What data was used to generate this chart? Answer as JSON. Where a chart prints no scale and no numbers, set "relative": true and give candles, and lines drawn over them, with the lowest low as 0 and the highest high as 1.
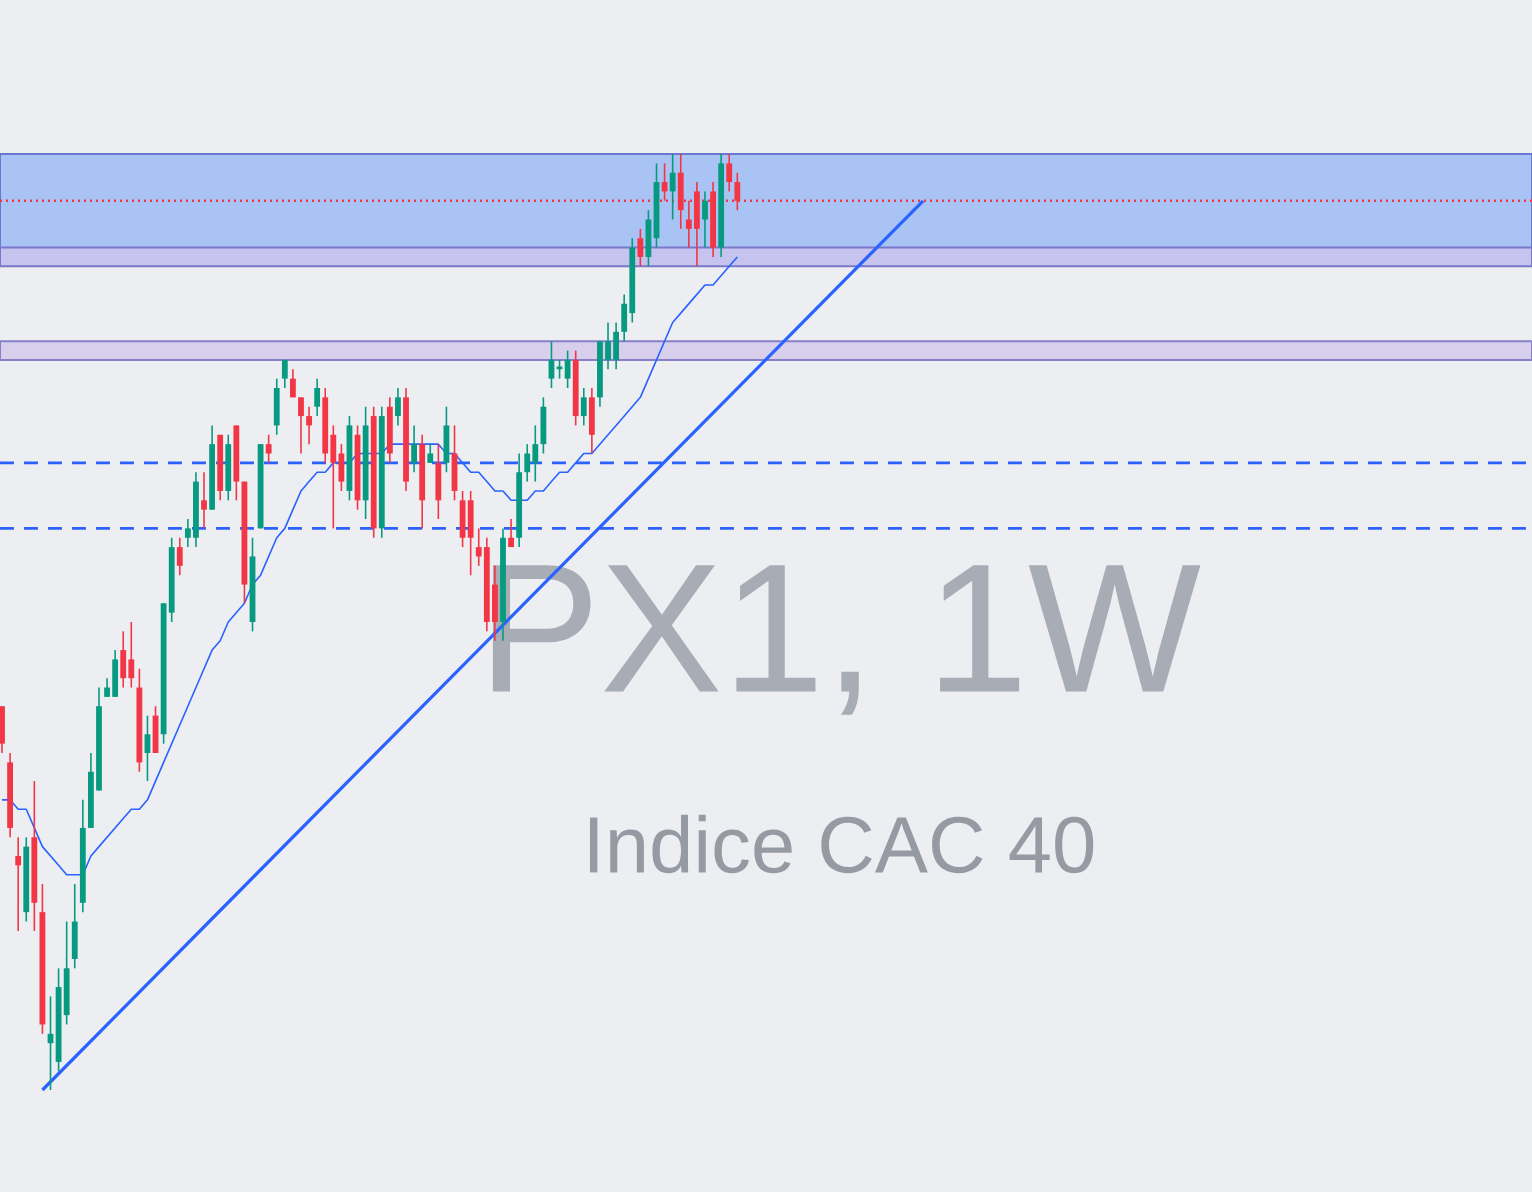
{
  "chart_data": {
    "type": "candlestick",
    "title": "PX1, 1W",
    "subtitle": "Indice CAC 40",
    "relative": true,
    "categories": [
      null,
      null,
      null,
      null,
      null,
      null,
      null,
      null,
      null,
      null,
      null,
      null,
      null,
      null,
      null,
      null,
      null,
      null,
      null,
      null,
      null,
      null,
      null,
      null,
      null,
      null,
      null,
      null,
      null,
      null,
      null,
      null,
      null,
      null,
      null,
      null,
      null,
      null,
      null,
      null,
      null,
      null,
      null,
      null,
      null,
      null,
      null,
      null,
      null,
      null,
      null,
      null,
      null,
      null,
      null,
      null,
      null,
      null,
      null,
      null,
      null,
      null,
      null,
      null,
      null,
      null,
      null,
      null,
      null,
      null,
      null,
      null,
      null,
      null,
      null,
      null,
      null,
      null,
      null,
      null,
      null,
      null,
      null,
      null,
      null,
      null,
      null,
      null,
      null,
      null,
      null,
      null,
      null,
      null,
      null,
      null,
      null,
      null,
      null,
      null,
      null,
      null,
      null,
      null,
      null,
      null,
      null,
      null,
      null,
      null,
      null,
      null,
      null,
      null,
      null
    ],
    "ohlc": [
      [
        0.41,
        0.41,
        0.36,
        0.37
      ],
      [
        0.35,
        0.36,
        0.27,
        0.28
      ],
      [
        0.25,
        0.27,
        0.17,
        0.24
      ],
      [
        0.19,
        0.27,
        0.18,
        0.26
      ],
      [
        0.27,
        0.33,
        0.17,
        0.2
      ],
      [
        0.19,
        0.22,
        0.06,
        0.07
      ],
      [
        0.05,
        0.1,
        0,
        0.06
      ],
      [
        0.03,
        0.13,
        0.02,
        0.11
      ],
      [
        0.08,
        0.18,
        0.07,
        0.13
      ],
      [
        0.14,
        0.22,
        0.13,
        0.18
      ],
      [
        0.2,
        0.31,
        0.19,
        0.28
      ],
      [
        0.28,
        0.36,
        0.28,
        0.34
      ],
      [
        0.32,
        0.43,
        0.32,
        0.41
      ],
      [
        0.42,
        0.44,
        0.42,
        0.43
      ],
      [
        0.42,
        0.47,
        0.42,
        0.46
      ],
      [
        0.47,
        0.49,
        0.43,
        0.44
      ],
      [
        0.46,
        0.5,
        0.43,
        0.44
      ],
      [
        0.43,
        0.45,
        0.34,
        0.35
      ],
      [
        0.36,
        0.4,
        0.33,
        0.38
      ],
      [
        0.4,
        0.41,
        0.36,
        0.36
      ],
      [
        0.38,
        0.52,
        0.37,
        0.52
      ],
      [
        0.51,
        0.59,
        0.5,
        0.58
      ],
      [
        0.58,
        0.59,
        0.55,
        0.56
      ],
      [
        0.59,
        0.61,
        0.58,
        0.6
      ],
      [
        0.59,
        0.66,
        0.58,
        0.65
      ],
      [
        0.63,
        0.66,
        0.6,
        0.62
      ],
      [
        0.62,
        0.71,
        0.62,
        0.69
      ],
      [
        0.7,
        0.7,
        0.63,
        0.64
      ],
      [
        0.64,
        0.7,
        0.63,
        0.69
      ],
      [
        0.71,
        0.71,
        0.63,
        0.65
      ],
      [
        0.65,
        0.65,
        0.52,
        0.54
      ],
      [
        0.5,
        0.59,
        0.49,
        0.57
      ],
      [
        0.6,
        0.69,
        0.6,
        0.69
      ],
      [
        0.69,
        0.7,
        0.67,
        0.68
      ],
      [
        0.71,
        0.76,
        0.7,
        0.75
      ],
      [
        0.76,
        0.78,
        0.75,
        0.78
      ],
      [
        0.76,
        0.77,
        0.74,
        0.74
      ],
      [
        0.74,
        0.74,
        0.68,
        0.72
      ],
      [
        0.72,
        0.73,
        0.69,
        0.71
      ],
      [
        0.73,
        0.76,
        0.72,
        0.75
      ],
      [
        0.74,
        0.75,
        0.67,
        0.68
      ],
      [
        0.7,
        0.71,
        0.6,
        0.67
      ],
      [
        0.68,
        0.69,
        0.64,
        0.65
      ],
      [
        0.64,
        0.72,
        0.63,
        0.71
      ],
      [
        0.7,
        0.71,
        0.62,
        0.63
      ],
      [
        0.63,
        0.73,
        0.61,
        0.71
      ],
      [
        0.72,
        0.73,
        0.59,
        0.6
      ],
      [
        0.6,
        0.73,
        0.59,
        0.72
      ],
      [
        0.73,
        0.74,
        0.67,
        0.68
      ],
      [
        0.72,
        0.75,
        0.71,
        0.74
      ],
      [
        0.74,
        0.75,
        0.64,
        0.65
      ],
      [
        0.67,
        0.71,
        0.66,
        0.69
      ],
      [
        0.69,
        0.7,
        0.6,
        0.63
      ],
      [
        0.67,
        0.69,
        0.67,
        0.68
      ],
      [
        0.67,
        0.69,
        0.61,
        0.63
      ],
      [
        0.67,
        0.73,
        0.66,
        0.71
      ],
      [
        0.68,
        0.71,
        0.63,
        0.64
      ],
      [
        0.63,
        0.64,
        0.58,
        0.59
      ],
      [
        0.63,
        0.64,
        0.55,
        0.59
      ],
      [
        0.58,
        0.6,
        0.56,
        0.57
      ],
      [
        0.58,
        0.59,
        0.49,
        0.5
      ],
      [
        0.54,
        0.56,
        0.48,
        0.5
      ],
      [
        0.5,
        0.6,
        0.48,
        0.59
      ],
      [
        0.59,
        0.61,
        0.58,
        0.58
      ],
      [
        0.59,
        0.68,
        0.58,
        0.66
      ],
      [
        0.66,
        0.69,
        0.65,
        0.68
      ],
      [
        0.67,
        0.71,
        0.65,
        0.69
      ],
      [
        0.69,
        0.74,
        0.68,
        0.73
      ],
      [
        0.76,
        0.8,
        0.75,
        0.78
      ],
      [
        0.77,
        0.78,
        0.76,
        0.77
      ],
      [
        0.76,
        0.79,
        0.75,
        0.78
      ],
      [
        0.78,
        0.79,
        0.71,
        0.72
      ],
      [
        0.72,
        0.75,
        0.71,
        0.74
      ],
      [
        0.74,
        0.75,
        0.68,
        0.7
      ],
      [
        0.74,
        0.8,
        0.73,
        0.8
      ],
      [
        0.78,
        0.82,
        0.77,
        0.8
      ],
      [
        0.78,
        0.82,
        0.77,
        0.81
      ],
      [
        0.81,
        0.85,
        0.8,
        0.84
      ],
      [
        0.83,
        0.91,
        0.82,
        0.9
      ],
      [
        0.91,
        0.92,
        0.88,
        0.89
      ],
      [
        0.89,
        0.94,
        0.88,
        0.93
      ],
      [
        0.91,
        0.99,
        0.9,
        0.97
      ],
      [
        0.97,
        0.99,
        0.95,
        0.96
      ],
      [
        0.96,
        1,
        0.93,
        0.98
      ],
      [
        0.98,
        1,
        0.92,
        0.94
      ],
      [
        0.93,
        0.95,
        0.9,
        0.92
      ],
      [
        0.96,
        0.97,
        0.88,
        0.92
      ],
      [
        0.93,
        0.96,
        0.9,
        0.95
      ],
      [
        0.96,
        0.97,
        0.89,
        0.9
      ],
      [
        0.9,
        1,
        0.89,
        0.99
      ],
      [
        0.99,
        1,
        0.96,
        0.97
      ],
      [
        0.97,
        0.98,
        0.94,
        0.95
      ],
      null,
      null,
      null,
      null,
      null,
      null,
      null,
      null,
      null,
      null,
      null,
      null,
      null,
      null,
      null,
      null,
      null,
      null,
      null,
      null,
      null,
      null,
      null
    ],
    "colors": [
      "#f23645",
      "#f23645",
      "#f23645",
      "#089981",
      "#f23645",
      "#f23645",
      "#089981",
      "#089981",
      "#089981",
      "#089981",
      "#089981",
      "#089981",
      "#089981",
      "#089981",
      "#089981",
      "#f23645",
      "#f23645",
      "#f23645",
      "#089981",
      "#f23645",
      "#089981",
      "#089981",
      "#f23645",
      "#089981",
      "#089981",
      "#f23645",
      "#089981",
      "#f23645",
      "#089981",
      "#f23645",
      "#f23645",
      "#089981",
      "#089981",
      "#f23645",
      "#089981",
      "#089981",
      "#f23645",
      "#f23645",
      "#f23645",
      "#089981",
      "#f23645",
      "#f23645",
      "#f23645",
      "#089981",
      "#f23645",
      "#089981",
      "#f23645",
      "#089981",
      "#f23645",
      "#089981",
      "#f23645",
      "#089981",
      "#f23645",
      "#089981",
      "#f23645",
      "#089981",
      "#f23645",
      "#f23645",
      "#f23645",
      "#f23645",
      "#f23645",
      "#f23645",
      "#089981",
      "#f23645",
      "#089981",
      "#089981",
      "#089981",
      "#089981",
      "#089981",
      "#089981",
      "#089981",
      "#f23645",
      "#089981",
      "#f23645",
      "#089981",
      "#089981",
      "#089981",
      "#089981",
      "#089981",
      "#f23645",
      "#089981",
      "#089981",
      "#f23645",
      "#089981",
      "#f23645",
      "#f23645",
      "#f23645",
      "#089981",
      "#f23645",
      "#089981",
      "#f23645",
      "#f23645",
      null,
      null,
      null,
      null,
      null,
      null,
      null,
      null,
      null,
      null,
      null,
      null,
      null,
      null,
      null,
      null,
      null,
      null,
      null,
      null,
      null,
      null,
      null
    ],
    "series": [
      {
        "type": "line",
        "color": "#2962ff",
        "values": [
          0.31,
          0.31,
          0.3,
          0.3,
          0.28,
          0.26,
          0.25,
          0.24,
          0.23,
          0.23,
          0.23,
          0.25,
          0.26,
          0.27,
          0.28,
          0.29,
          0.3,
          0.3,
          0.31,
          0.33,
          0.35,
          0.37,
          0.39,
          0.41,
          0.43,
          0.45,
          0.47,
          0.48,
          0.5,
          0.51,
          0.52,
          0.54,
          0.55,
          0.57,
          0.59,
          0.6,
          0.62,
          0.64,
          0.65,
          0.66,
          0.66,
          0.67,
          0.67,
          0.67,
          0.68,
          0.68,
          0.68,
          0.68,
          0.69,
          0.69,
          0.69,
          0.69,
          0.69,
          0.69,
          0.69,
          0.68,
          0.68,
          0.67,
          0.66,
          0.66,
          0.65,
          0.64,
          0.64,
          0.63,
          0.63,
          0.63,
          0.64,
          0.64,
          0.65,
          0.66,
          0.66,
          0.67,
          0.68,
          0.68,
          0.69,
          0.7,
          0.71,
          0.72,
          0.73,
          0.74,
          0.76,
          0.78,
          0.8,
          0.82,
          0.83,
          0.84,
          0.85,
          0.86,
          0.86,
          0.87,
          0.88,
          0.89,
          null,
          null,
          null,
          null,
          null,
          null,
          null,
          null,
          null,
          null,
          null,
          null,
          null,
          null,
          null,
          null,
          null,
          null,
          null,
          null,
          null,
          null,
          null
        ]
      },
      {
        "type": "line",
        "color": "#2962ff",
        "values": [
          null,
          null,
          null,
          null,
          null,
          0,
          null,
          null,
          null,
          null,
          null,
          null,
          null,
          null,
          null,
          null,
          null,
          null,
          null,
          null,
          null,
          null,
          null,
          null,
          null,
          null,
          null,
          null,
          null,
          null,
          null,
          null,
          null,
          null,
          null,
          null,
          null,
          null,
          null,
          null,
          null,
          null,
          null,
          null,
          null,
          null,
          null,
          null,
          null,
          null,
          null,
          null,
          null,
          null,
          null,
          null,
          null,
          null,
          null,
          null,
          null,
          null,
          null,
          null,
          null,
          null,
          null,
          null,
          null,
          null,
          null,
          null,
          null,
          null,
          null,
          null,
          null,
          null,
          null,
          null,
          null,
          null,
          null,
          null,
          null,
          null,
          null,
          null,
          null,
          null,
          null,
          null,
          null,
          null,
          null,
          null,
          null,
          null,
          null,
          null,
          null,
          null,
          null,
          null,
          null,
          null,
          null,
          null,
          null,
          null,
          null,
          null,
          null,
          null,
          0.95
        ]
      }
    ],
    "ref_lines": [
      {
        "axis": "y",
        "value": 0.67,
        "color": "#2962ff",
        "line_style": "dashed"
      },
      {
        "axis": "y",
        "value": 0.6,
        "color": "#2962ff",
        "line_style": "dashed"
      },
      {
        "axis": "y",
        "value": 0.95,
        "color": "#f23645",
        "line_style": "dotted"
      }
    ],
    "bands": [
      {
        "axis": "y",
        "from": 0.89,
        "to": 1.0,
        "color": "#a9c4f4"
      },
      {
        "axis": "y",
        "from": 0.78,
        "to": 0.8,
        "color": "#d8cfec"
      },
      {
        "axis": "y",
        "from": 0.88,
        "to": 0.9,
        "color": "#c6c3ee"
      }
    ]
  }
}
